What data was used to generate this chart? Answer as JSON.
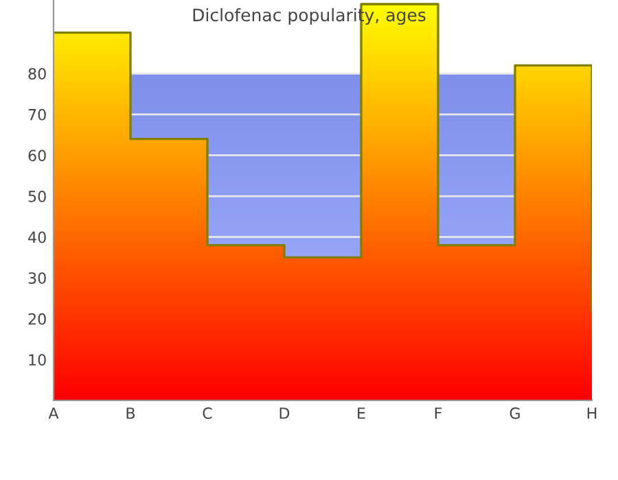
{
  "chart_data": {
    "type": "step",
    "title": "Diclofenac popularity, ages",
    "categories": [
      "A",
      "B",
      "C",
      "D",
      "E",
      "F",
      "G",
      "H"
    ],
    "series": [
      {
        "color": "#808000",
        "values": [
          90,
          64,
          38,
          35,
          97,
          38,
          82,
          22
        ]
      }
    ],
    "bands": [
      {
        "axis": "y",
        "from": 0,
        "to": 80,
        "color": "#8a9cff"
      }
    ],
    "ylim": [
      0,
      98
    ],
    "yticks": [
      10,
      20,
      30,
      40,
      50,
      60,
      70,
      80
    ],
    "grid": "y",
    "legend": false
  }
}
